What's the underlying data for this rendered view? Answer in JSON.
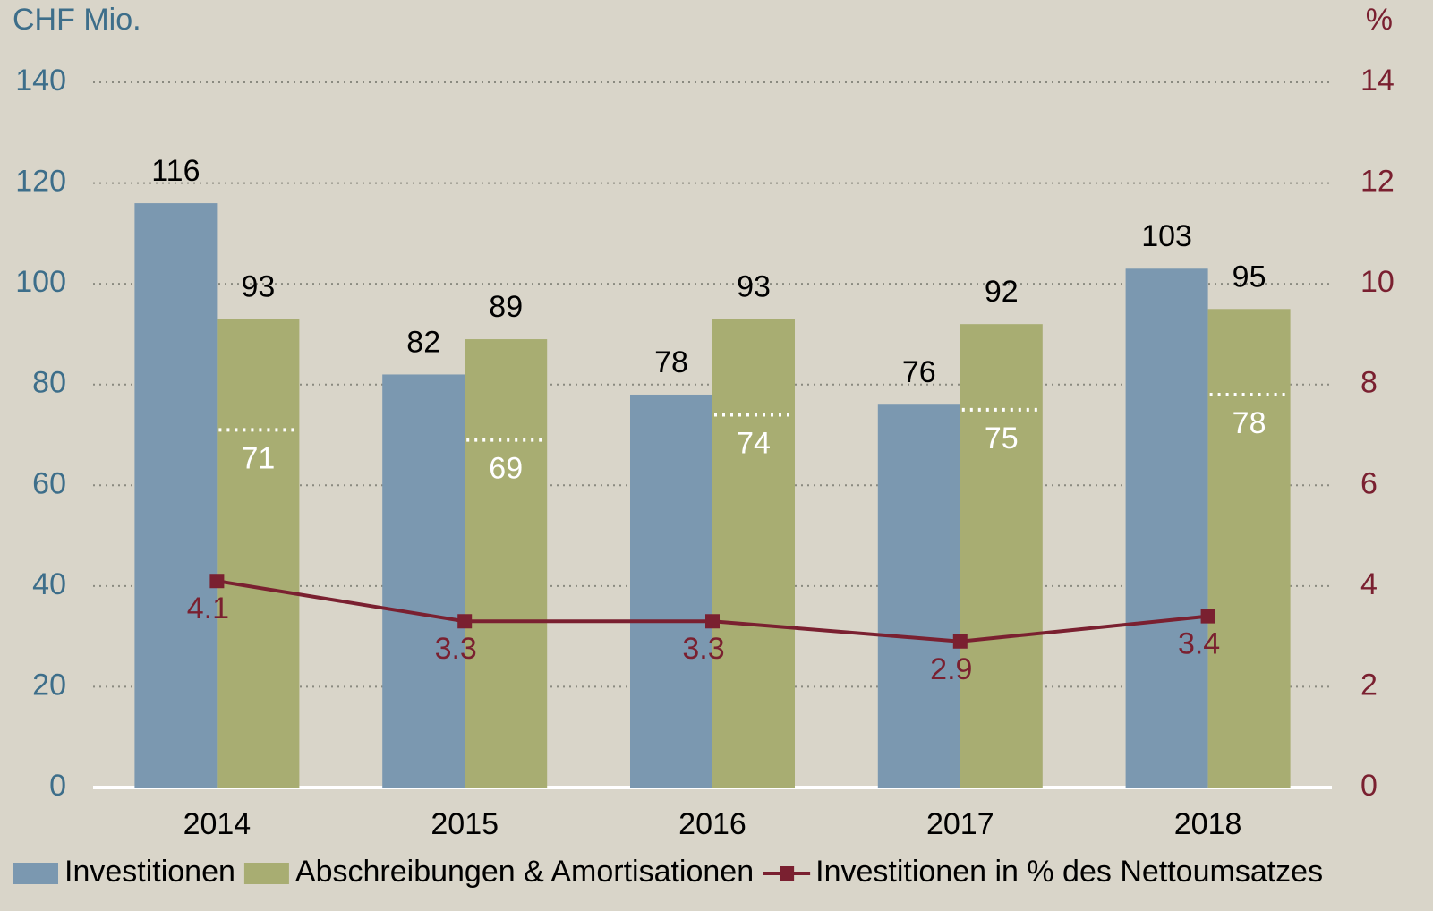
{
  "chart_data": {
    "type": "bar",
    "y_label": "CHF Mio.",
    "y2_label": "%",
    "categories": [
      "2014",
      "2015",
      "2016",
      "2017",
      "2018"
    ],
    "series": [
      {
        "name": "Investitionen",
        "type": "bar",
        "color": "#7b98b0",
        "values": [
          116,
          82,
          78,
          76,
          103
        ]
      },
      {
        "name": "Abschreibungen & Amortisationen",
        "type": "bar",
        "color": "#a8ad72",
        "values": [
          93,
          89,
          93,
          92,
          95
        ]
      },
      {
        "type": "dotted-marker",
        "color": "#ffffff",
        "values": [
          71,
          69,
          74,
          75,
          78
        ]
      },
      {
        "name": "Investitionen in % des Nettoumsatzes",
        "type": "line",
        "axis": "y2",
        "color": "#7a2030",
        "values": [
          4.1,
          3.3,
          3.3,
          2.9,
          3.4
        ]
      }
    ],
    "ylim": [
      0,
      140
    ],
    "yticks": [
      0,
      20,
      40,
      60,
      80,
      100,
      120,
      140
    ],
    "y2lim": [
      0,
      14
    ],
    "y2ticks": [
      0,
      2,
      4,
      6,
      8,
      10,
      12,
      14
    ],
    "grid": true,
    "legend": "bottom"
  }
}
